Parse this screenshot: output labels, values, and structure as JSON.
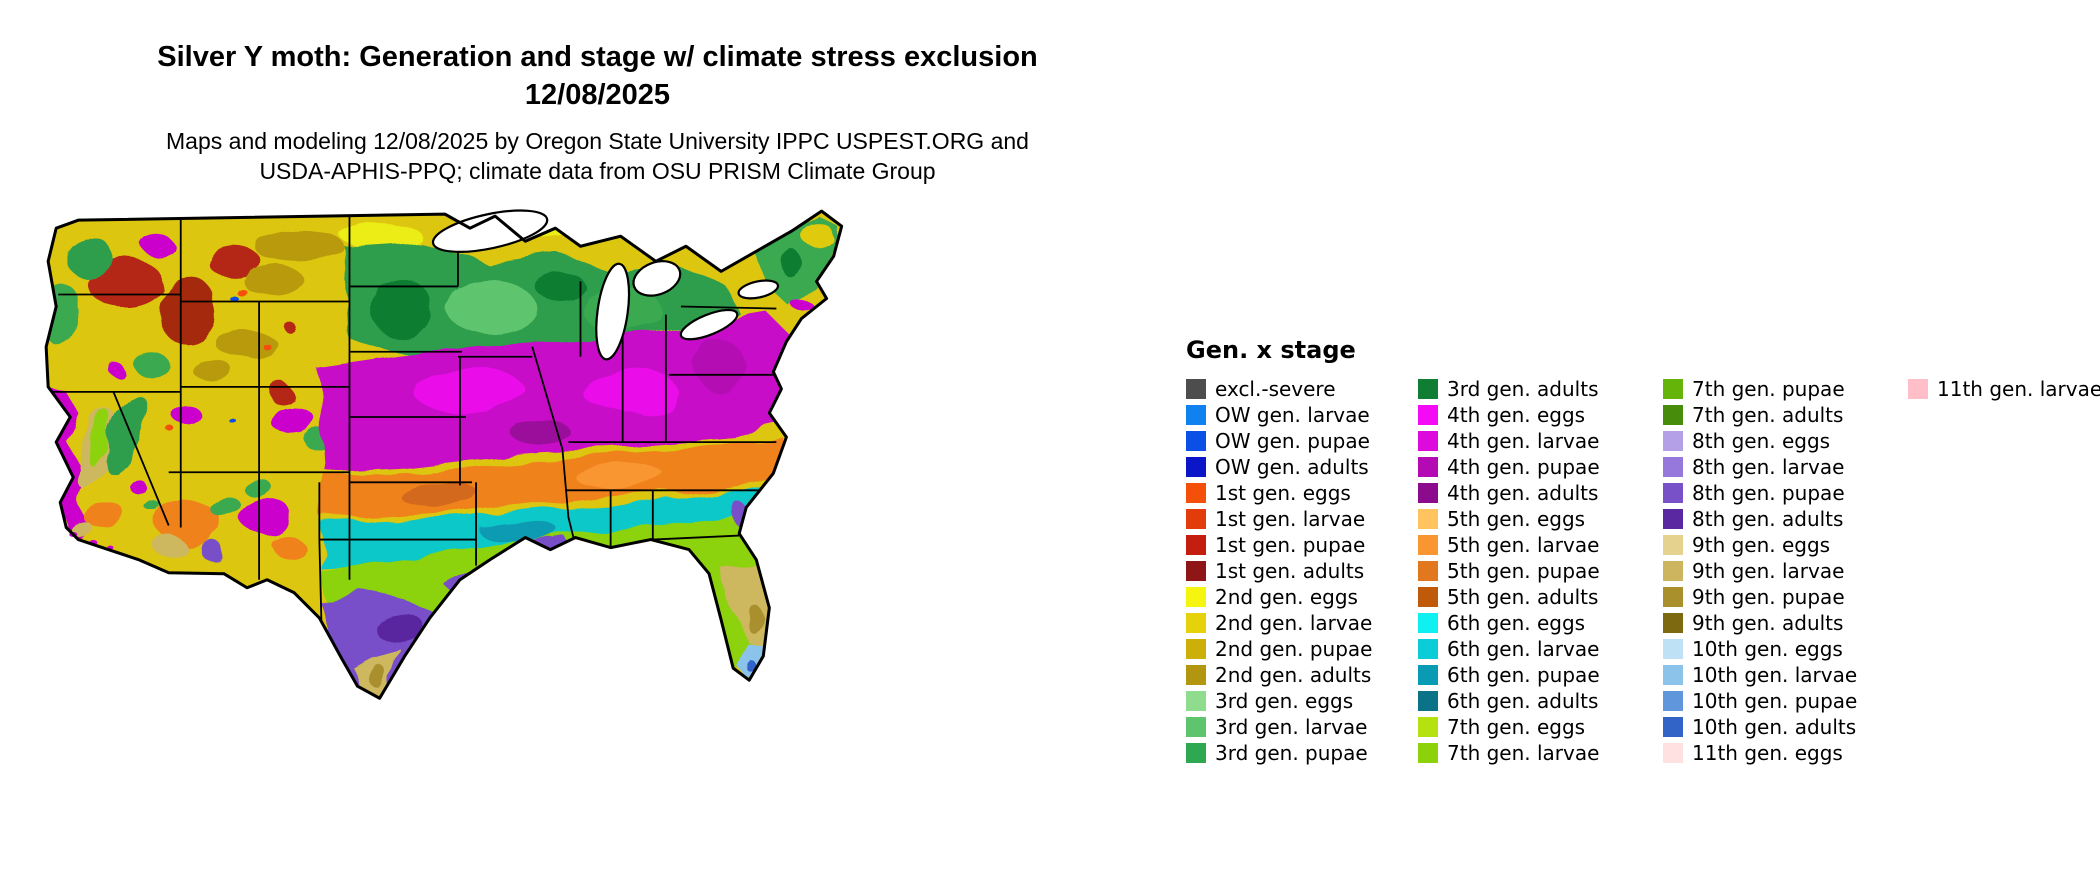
{
  "header": {
    "title_line1": "Silver Y moth: Generation and stage w/ climate stress exclusion",
    "title_line2": "12/08/2025",
    "subtitle_line1": "Maps and modeling 12/08/2025 by Oregon State University IPPC USPEST.ORG and",
    "subtitle_line2": "USDA-APHIS-PPQ; climate data from OSU PRISM Climate Group"
  },
  "legend": {
    "title": "Gen. x stage",
    "columns": [
      [
        {
          "label": "excl.-severe",
          "color": "#4d4d4d"
        },
        {
          "label": "OW gen. larvae",
          "color": "#0f82f0"
        },
        {
          "label": "OW gen. pupae",
          "color": "#0a50e6"
        },
        {
          "label": "OW gen. adults",
          "color": "#0a16c8"
        },
        {
          "label": "1st gen. eggs",
          "color": "#f5500a"
        },
        {
          "label": "1st gen. larvae",
          "color": "#e13c0a"
        },
        {
          "label": "1st gen. pupae",
          "color": "#c31e0f"
        },
        {
          "label": "1st gen. adults",
          "color": "#8f1616"
        },
        {
          "label": "2nd gen. eggs",
          "color": "#f5f50f"
        },
        {
          "label": "2nd gen. larvae",
          "color": "#e6d20a"
        },
        {
          "label": "2nd gen. pupae",
          "color": "#cdaf0a"
        },
        {
          "label": "2nd gen. adults",
          "color": "#b2960f"
        },
        {
          "label": "3rd gen. eggs",
          "color": "#8fdc8f"
        },
        {
          "label": "3rd gen. larvae",
          "color": "#5fc46e"
        },
        {
          "label": "3rd gen. pupae",
          "color": "#2fa852"
        }
      ],
      [
        {
          "label": "3rd gen. adults",
          "color": "#0f7d32"
        },
        {
          "label": "4th gen. eggs",
          "color": "#f50af5"
        },
        {
          "label": "4th gen. larvae",
          "color": "#dc0adc"
        },
        {
          "label": "4th gen. pupae",
          "color": "#b40ab4"
        },
        {
          "label": "4th gen. adults",
          "color": "#8c0a8c"
        },
        {
          "label": "5th gen. eggs",
          "color": "#ffc35f"
        },
        {
          "label": "5th gen. larvae",
          "color": "#fa9632"
        },
        {
          "label": "5th gen. pupae",
          "color": "#e1781e"
        },
        {
          "label": "5th gen. adults",
          "color": "#be5a0a"
        },
        {
          "label": "6th gen. eggs",
          "color": "#0ff0f0"
        },
        {
          "label": "6th gen. larvae",
          "color": "#0acdd7"
        },
        {
          "label": "6th gen. pupae",
          "color": "#0a9bb4"
        },
        {
          "label": "6th gen. adults",
          "color": "#0a7387"
        },
        {
          "label": "7th gen. eggs",
          "color": "#b4e10f"
        },
        {
          "label": "7th gen. larvae",
          "color": "#8cd20a"
        }
      ],
      [
        {
          "label": "7th gen. pupae",
          "color": "#64b40a"
        },
        {
          "label": "7th gen. adults",
          "color": "#478c0a"
        },
        {
          "label": "8th gen. eggs",
          "color": "#b4a0e6"
        },
        {
          "label": "8th gen. larvae",
          "color": "#9678dc"
        },
        {
          "label": "8th gen. pupae",
          "color": "#7850c8"
        },
        {
          "label": "8th gen. adults",
          "color": "#5a28a0"
        },
        {
          "label": "9th gen. eggs",
          "color": "#e6d28f"
        },
        {
          "label": "9th gen. larvae",
          "color": "#cdb45f"
        },
        {
          "label": "9th gen. pupae",
          "color": "#aa8f2d"
        },
        {
          "label": "9th gen. adults",
          "color": "#7d690f"
        },
        {
          "label": "10th gen. eggs",
          "color": "#bee1f5"
        },
        {
          "label": "10th gen. larvae",
          "color": "#8cc3eb"
        },
        {
          "label": "10th gen. pupae",
          "color": "#5f96dc"
        },
        {
          "label": "10th gen. adults",
          "color": "#3264c8"
        },
        {
          "label": "11th gen. eggs",
          "color": "#ffe1e1"
        }
      ],
      [
        {
          "label": "11th gen. larvae",
          "color": "#ffbec8"
        }
      ]
    ]
  }
}
